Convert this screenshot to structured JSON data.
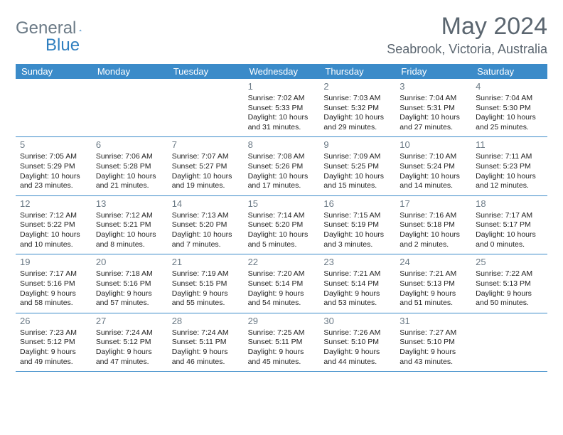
{
  "logo": {
    "text1": "General",
    "text2": "Blue",
    "color1": "#6b7a86",
    "color2": "#2f7fbf",
    "shape_color": "#2f7fbf"
  },
  "header": {
    "month_title": "May 2024",
    "location": "Seabrook, Victoria, Australia"
  },
  "style": {
    "header_bg": "#3b8bc9",
    "header_text": "#ffffff",
    "grid_border": "#3b8bc9",
    "daynum_color": "#6b7a86",
    "body_text": "#222222",
    "background": "#ffffff",
    "month_title_fontsize": 34,
    "location_fontsize": 18,
    "dayhead_fontsize": 13,
    "cell_fontsize": 10.5
  },
  "day_headers": [
    "Sunday",
    "Monday",
    "Tuesday",
    "Wednesday",
    "Thursday",
    "Friday",
    "Saturday"
  ],
  "weeks": [
    [
      {
        "num": "",
        "lines": []
      },
      {
        "num": "",
        "lines": []
      },
      {
        "num": "",
        "lines": []
      },
      {
        "num": "1",
        "lines": [
          "Sunrise: 7:02 AM",
          "Sunset: 5:33 PM",
          "Daylight: 10 hours",
          "and 31 minutes."
        ]
      },
      {
        "num": "2",
        "lines": [
          "Sunrise: 7:03 AM",
          "Sunset: 5:32 PM",
          "Daylight: 10 hours",
          "and 29 minutes."
        ]
      },
      {
        "num": "3",
        "lines": [
          "Sunrise: 7:04 AM",
          "Sunset: 5:31 PM",
          "Daylight: 10 hours",
          "and 27 minutes."
        ]
      },
      {
        "num": "4",
        "lines": [
          "Sunrise: 7:04 AM",
          "Sunset: 5:30 PM",
          "Daylight: 10 hours",
          "and 25 minutes."
        ]
      }
    ],
    [
      {
        "num": "5",
        "lines": [
          "Sunrise: 7:05 AM",
          "Sunset: 5:29 PM",
          "Daylight: 10 hours",
          "and 23 minutes."
        ]
      },
      {
        "num": "6",
        "lines": [
          "Sunrise: 7:06 AM",
          "Sunset: 5:28 PM",
          "Daylight: 10 hours",
          "and 21 minutes."
        ]
      },
      {
        "num": "7",
        "lines": [
          "Sunrise: 7:07 AM",
          "Sunset: 5:27 PM",
          "Daylight: 10 hours",
          "and 19 minutes."
        ]
      },
      {
        "num": "8",
        "lines": [
          "Sunrise: 7:08 AM",
          "Sunset: 5:26 PM",
          "Daylight: 10 hours",
          "and 17 minutes."
        ]
      },
      {
        "num": "9",
        "lines": [
          "Sunrise: 7:09 AM",
          "Sunset: 5:25 PM",
          "Daylight: 10 hours",
          "and 15 minutes."
        ]
      },
      {
        "num": "10",
        "lines": [
          "Sunrise: 7:10 AM",
          "Sunset: 5:24 PM",
          "Daylight: 10 hours",
          "and 14 minutes."
        ]
      },
      {
        "num": "11",
        "lines": [
          "Sunrise: 7:11 AM",
          "Sunset: 5:23 PM",
          "Daylight: 10 hours",
          "and 12 minutes."
        ]
      }
    ],
    [
      {
        "num": "12",
        "lines": [
          "Sunrise: 7:12 AM",
          "Sunset: 5:22 PM",
          "Daylight: 10 hours",
          "and 10 minutes."
        ]
      },
      {
        "num": "13",
        "lines": [
          "Sunrise: 7:12 AM",
          "Sunset: 5:21 PM",
          "Daylight: 10 hours",
          "and 8 minutes."
        ]
      },
      {
        "num": "14",
        "lines": [
          "Sunrise: 7:13 AM",
          "Sunset: 5:20 PM",
          "Daylight: 10 hours",
          "and 7 minutes."
        ]
      },
      {
        "num": "15",
        "lines": [
          "Sunrise: 7:14 AM",
          "Sunset: 5:20 PM",
          "Daylight: 10 hours",
          "and 5 minutes."
        ]
      },
      {
        "num": "16",
        "lines": [
          "Sunrise: 7:15 AM",
          "Sunset: 5:19 PM",
          "Daylight: 10 hours",
          "and 3 minutes."
        ]
      },
      {
        "num": "17",
        "lines": [
          "Sunrise: 7:16 AM",
          "Sunset: 5:18 PM",
          "Daylight: 10 hours",
          "and 2 minutes."
        ]
      },
      {
        "num": "18",
        "lines": [
          "Sunrise: 7:17 AM",
          "Sunset: 5:17 PM",
          "Daylight: 10 hours",
          "and 0 minutes."
        ]
      }
    ],
    [
      {
        "num": "19",
        "lines": [
          "Sunrise: 7:17 AM",
          "Sunset: 5:16 PM",
          "Daylight: 9 hours",
          "and 58 minutes."
        ]
      },
      {
        "num": "20",
        "lines": [
          "Sunrise: 7:18 AM",
          "Sunset: 5:16 PM",
          "Daylight: 9 hours",
          "and 57 minutes."
        ]
      },
      {
        "num": "21",
        "lines": [
          "Sunrise: 7:19 AM",
          "Sunset: 5:15 PM",
          "Daylight: 9 hours",
          "and 55 minutes."
        ]
      },
      {
        "num": "22",
        "lines": [
          "Sunrise: 7:20 AM",
          "Sunset: 5:14 PM",
          "Daylight: 9 hours",
          "and 54 minutes."
        ]
      },
      {
        "num": "23",
        "lines": [
          "Sunrise: 7:21 AM",
          "Sunset: 5:14 PM",
          "Daylight: 9 hours",
          "and 53 minutes."
        ]
      },
      {
        "num": "24",
        "lines": [
          "Sunrise: 7:21 AM",
          "Sunset: 5:13 PM",
          "Daylight: 9 hours",
          "and 51 minutes."
        ]
      },
      {
        "num": "25",
        "lines": [
          "Sunrise: 7:22 AM",
          "Sunset: 5:13 PM",
          "Daylight: 9 hours",
          "and 50 minutes."
        ]
      }
    ],
    [
      {
        "num": "26",
        "lines": [
          "Sunrise: 7:23 AM",
          "Sunset: 5:12 PM",
          "Daylight: 9 hours",
          "and 49 minutes."
        ]
      },
      {
        "num": "27",
        "lines": [
          "Sunrise: 7:24 AM",
          "Sunset: 5:12 PM",
          "Daylight: 9 hours",
          "and 47 minutes."
        ]
      },
      {
        "num": "28",
        "lines": [
          "Sunrise: 7:24 AM",
          "Sunset: 5:11 PM",
          "Daylight: 9 hours",
          "and 46 minutes."
        ]
      },
      {
        "num": "29",
        "lines": [
          "Sunrise: 7:25 AM",
          "Sunset: 5:11 PM",
          "Daylight: 9 hours",
          "and 45 minutes."
        ]
      },
      {
        "num": "30",
        "lines": [
          "Sunrise: 7:26 AM",
          "Sunset: 5:10 PM",
          "Daylight: 9 hours",
          "and 44 minutes."
        ]
      },
      {
        "num": "31",
        "lines": [
          "Sunrise: 7:27 AM",
          "Sunset: 5:10 PM",
          "Daylight: 9 hours",
          "and 43 minutes."
        ]
      },
      {
        "num": "",
        "lines": []
      }
    ]
  ]
}
